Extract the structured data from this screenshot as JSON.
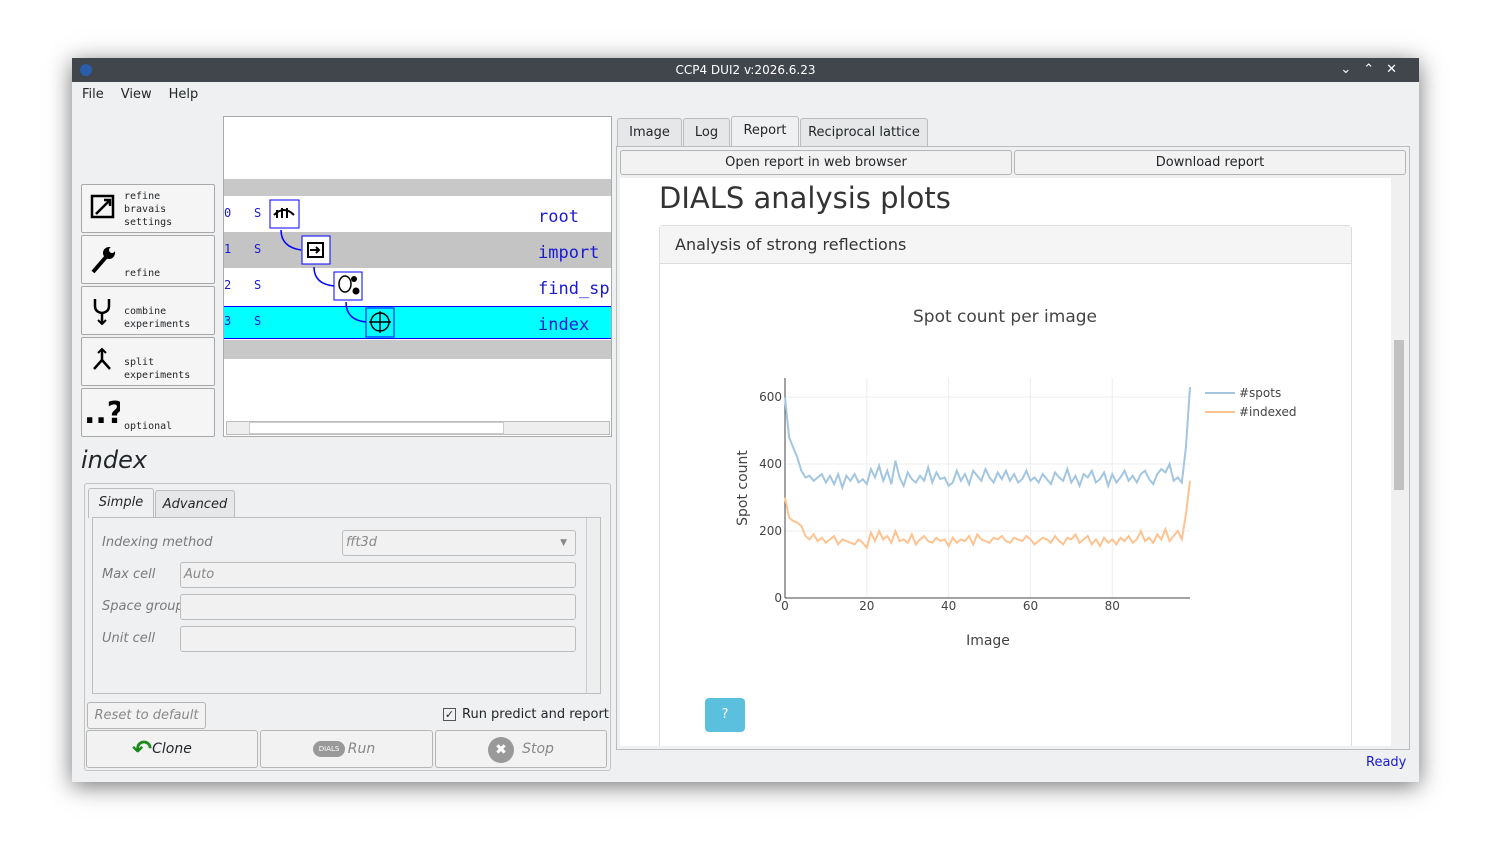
{
  "window": {
    "title": "CCP4 DUI2 v:2026.6.23"
  },
  "menu": [
    "File",
    "View",
    "Help"
  ],
  "tool_buttons": [
    "refine\nbravais\nsettings",
    "refine",
    "combine\nexperiments",
    "split\nexperiments",
    "optional"
  ],
  "tree": [
    {
      "index": "0",
      "state": "S",
      "label": "root"
    },
    {
      "index": "1",
      "state": "S",
      "label": "import"
    },
    {
      "index": "2",
      "state": "S",
      "label": "find_sp"
    },
    {
      "index": "3",
      "state": "S",
      "label": "index"
    }
  ],
  "step_title": "index",
  "param_tabs": [
    "Simple",
    "Advanced"
  ],
  "params": [
    {
      "label": "Indexing method",
      "value": "fft3d"
    },
    {
      "label": "Max cell",
      "placeholder": "Auto"
    },
    {
      "label": "Space group"
    },
    {
      "label": "Unit cell"
    }
  ],
  "reset_button": "Reset to default",
  "run_predict_checkbox": "Run predict and report",
  "action_buttons": {
    "clone": "Clone",
    "run": "Run",
    "run_icon": "DIALS",
    "stop": "Stop"
  },
  "right_tabs": [
    "Image",
    "Log",
    "Report",
    "Reciprocal lattice"
  ],
  "report_buttons": [
    "Open report in web browser",
    "Download report"
  ],
  "report": {
    "heading": "DIALS analysis plots",
    "panel_title": "Analysis of strong reflections"
  },
  "status": "Ready",
  "chart_data": {
    "type": "line",
    "title": "Spot count per image",
    "xlabel": "Image",
    "ylabel": "Spot count",
    "x": [
      0,
      1,
      2,
      3,
      4,
      5,
      6,
      7,
      8,
      9,
      10,
      11,
      12,
      13,
      14,
      15,
      16,
      17,
      18,
      19,
      20,
      21,
      22,
      23,
      24,
      25,
      26,
      27,
      28,
      29,
      30,
      31,
      32,
      33,
      34,
      35,
      36,
      37,
      38,
      39,
      40,
      41,
      42,
      43,
      44,
      45,
      46,
      47,
      48,
      49,
      50,
      51,
      52,
      53,
      54,
      55,
      56,
      57,
      58,
      59,
      60,
      61,
      62,
      63,
      64,
      65,
      66,
      67,
      68,
      69,
      70,
      71,
      72,
      73,
      74,
      75,
      76,
      77,
      78,
      79,
      80,
      81,
      82,
      83,
      84,
      85,
      86,
      87,
      88,
      89,
      90,
      91,
      92,
      93,
      94,
      95,
      96,
      97,
      98,
      99
    ],
    "series": [
      {
        "name": "#spots",
        "color": "#a3c6e0",
        "values": [
          600,
          480,
          450,
          420,
          380,
          360,
          365,
          350,
          360,
          370,
          345,
          365,
          340,
          370,
          330,
          365,
          350,
          370,
          345,
          355,
          340,
          385,
          360,
          395,
          350,
          380,
          340,
          410,
          360,
          335,
          375,
          355,
          345,
          365,
          350,
          390,
          345,
          375,
          355,
          360,
          335,
          345,
          380,
          350,
          370,
          340,
          380,
          365,
          350,
          385,
          360,
          345,
          375,
          355,
          380,
          350,
          370,
          345,
          355,
          380,
          350,
          360,
          345,
          370,
          355,
          340,
          375,
          360,
          350,
          385,
          345,
          365,
          335,
          370,
          360,
          380,
          345,
          355,
          375,
          335,
          370,
          345,
          360,
          380,
          350,
          365,
          345,
          370,
          380,
          355,
          340,
          370,
          385,
          375,
          400,
          350,
          360,
          345,
          450,
          630
        ]
      },
      {
        "name": "#indexed",
        "color": "#fdc391",
        "values": [
          300,
          240,
          230,
          225,
          215,
          185,
          175,
          190,
          170,
          180,
          165,
          175,
          185,
          160,
          175,
          170,
          165,
          160,
          175,
          165,
          150,
          195,
          170,
          200,
          175,
          185,
          165,
          200,
          170,
          175,
          165,
          190,
          160,
          175,
          185,
          170,
          165,
          180,
          170,
          175,
          155,
          180,
          165,
          175,
          170,
          185,
          160,
          190,
          175,
          170,
          165,
          180,
          175,
          185,
          170,
          165,
          180,
          175,
          170,
          185,
          175,
          160,
          170,
          180,
          175,
          165,
          185,
          170,
          160,
          180,
          175,
          190,
          165,
          175,
          185,
          160,
          175,
          155,
          180,
          165,
          175,
          160,
          180,
          170,
          185,
          165,
          175,
          200,
          170,
          180,
          165,
          190,
          175,
          205,
          170,
          185,
          200,
          175,
          250,
          350
        ]
      }
    ],
    "xlim": [
      0,
      99
    ],
    "ylim": [
      0,
      657
    ],
    "xticks": [
      0,
      20,
      40,
      60,
      80
    ],
    "yticks": [
      0,
      200,
      400,
      600
    ],
    "grid": true,
    "legend": "top-right"
  }
}
